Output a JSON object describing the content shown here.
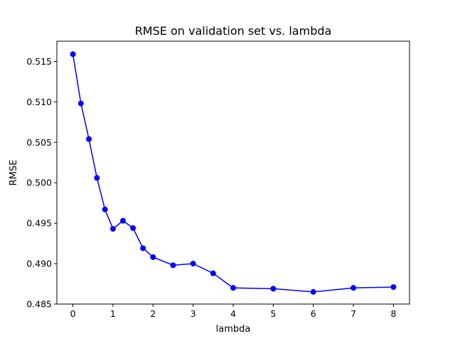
{
  "chart_data": {
    "type": "line",
    "title": "RMSE on validation set vs. lambda",
    "xlabel": "lambda",
    "ylabel": "RMSE",
    "xlim": [
      -0.4,
      8.4
    ],
    "ylim": [
      0.485,
      0.5175
    ],
    "xticks": [
      0,
      1,
      2,
      3,
      4,
      5,
      6,
      7,
      8
    ],
    "yticks": [
      0.485,
      0.49,
      0.495,
      0.5,
      0.505,
      0.51,
      0.515
    ],
    "ytick_labels": [
      "0.485",
      "0.490",
      "0.495",
      "0.500",
      "0.505",
      "0.510",
      "0.515"
    ],
    "grid": false,
    "series": [
      {
        "color": "#0000ff",
        "marker": "circle",
        "x": [
          0,
          0.2,
          0.4,
          0.6,
          0.8,
          1.0,
          1.25,
          1.5,
          1.75,
          2.0,
          2.5,
          3.0,
          3.5,
          4.0,
          5.0,
          6.0,
          7.0,
          8.0
        ],
        "y": [
          0.5159,
          0.5098,
          0.5054,
          0.5006,
          0.4967,
          0.4943,
          0.4953,
          0.4944,
          0.4919,
          0.4908,
          0.4898,
          0.49,
          0.4888,
          0.487,
          0.4869,
          0.4865,
          0.487,
          0.4871
        ]
      }
    ]
  }
}
